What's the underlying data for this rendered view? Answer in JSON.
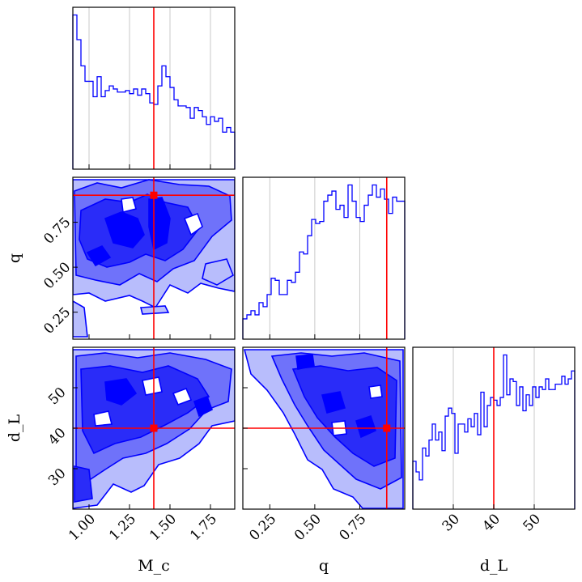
{
  "chart_data": {
    "type": "corner",
    "parameters": [
      "M_c",
      "q",
      "d_L"
    ],
    "truths": {
      "M_c": 1.4,
      "q": 0.9,
      "d_L": 40
    },
    "ranges": {
      "M_c": [
        0.9,
        1.9
      ],
      "q": [
        0.1,
        1.0
      ],
      "d_L": [
        20,
        60
      ]
    },
    "ticks": {
      "M_c": [
        "1.00",
        "1.25",
        "1.50",
        "1.75"
      ],
      "q": [
        "0.25",
        "0.50",
        "0.75"
      ],
      "d_L": [
        "30",
        "40",
        "50"
      ]
    },
    "histograms": {
      "M_c": {
        "bin_edges_range": [
          0.9,
          1.9
        ],
        "counts": [
          100,
          84,
          67,
          57,
          57,
          47,
          60,
          47,
          51,
          54,
          52,
          50,
          50,
          51,
          49,
          52,
          48,
          52,
          49,
          43,
          42,
          54,
          67,
          60,
          53,
          45,
          41,
          41,
          40,
          33,
          40,
          38,
          34,
          29,
          34,
          31,
          33,
          24,
          27,
          24
        ]
      },
      "q": {
        "bin_edges_range": [
          0.1,
          1.0
        ],
        "counts": [
          10,
          12,
          14,
          12,
          18,
          16,
          22,
          30,
          29,
          22,
          22,
          29,
          28,
          33,
          43,
          42,
          51,
          59,
          57,
          58,
          68,
          71,
          73,
          64,
          66,
          60,
          76,
          68,
          60,
          58,
          66,
          71,
          76,
          70,
          74,
          69,
          62,
          70,
          68,
          68
        ]
      },
      "d_L": {
        "bin_edges_range": [
          20,
          60
        ],
        "counts": [
          18,
          14,
          11,
          23,
          20,
          26,
          32,
          26,
          29,
          22,
          35,
          38,
          36,
          21,
          32,
          32,
          29,
          34,
          31,
          36,
          28,
          44,
          31,
          39,
          42,
          41,
          39,
          42,
          58,
          43,
          49,
          48,
          39,
          46,
          37,
          43,
          39,
          46,
          42,
          46,
          45,
          49,
          45,
          45,
          47,
          47,
          50,
          47,
          49,
          52
        ]
      }
    },
    "axis_labels": {
      "M_c": "M_c",
      "q": "q",
      "d_L": "d_L"
    },
    "grid": true,
    "colors": {
      "samples": "#0000ff",
      "fill_light": "#b8bdfc",
      "fill_mid": "#6f72fa",
      "fill_dark": "#2a2cf8",
      "fill_darkest": "#0000ff",
      "truth": "#ff0000"
    }
  }
}
